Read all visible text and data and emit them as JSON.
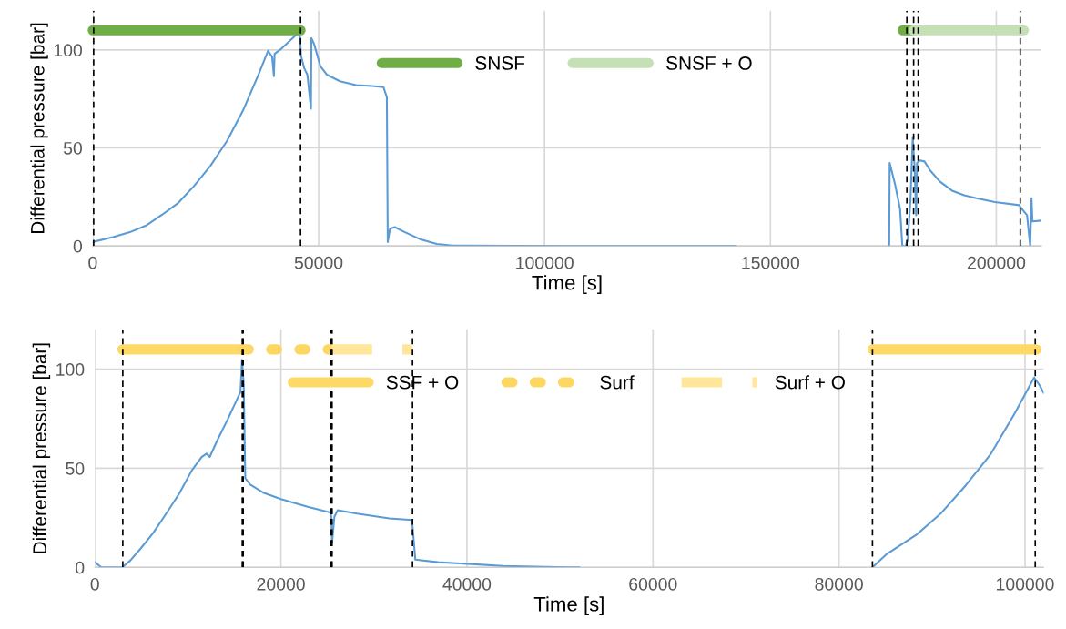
{
  "chart_data": [
    {
      "type": "line",
      "xlabel": "Time [s]",
      "ylabel": "Differential pressure [bar]",
      "xlim": [
        0,
        210000
      ],
      "ylim": [
        0,
        120
      ],
      "xticks": [
        0,
        50000,
        100000,
        150000,
        200000
      ],
      "yticks": [
        0,
        50,
        100
      ],
      "grid": true,
      "legend": "top",
      "marker": "none",
      "series": [
        {
          "name": "SNSF",
          "color": "#70ad47",
          "line_style": "solid",
          "x": [
            0,
            46000,
            112000,
            179300,
            181700
          ],
          "values": [
            110,
            110,
            null,
            110,
            110
          ]
        },
        {
          "name": "SNSF + O",
          "color": "#c5e0b4",
          "line_style": "solid",
          "x": [
            181700,
            206100
          ],
          "values": [
            110,
            110
          ]
        },
        {
          "color": "#5b9bd5",
          "line_style": "solid",
          "x": [
            0,
            0,
            4650,
            8200,
            11800,
            15400,
            18950,
            22500,
            26100,
            29700,
            33250,
            36800,
            38800,
            39700,
            40100,
            40250,
            41800,
            44700,
            45800,
            46100,
            46800,
            47500,
            48300,
            48400,
            49000,
            50400,
            51800,
            54700,
            58300,
            61850,
            64350,
            65100,
            65300,
            65800,
            66850,
            69000,
            72600,
            76150,
            79700,
            104700,
            142400,
            160000,
            176300,
            176400,
            177600,
            178700,
            179200,
            179900,
            180400,
            181000,
            181500,
            181900,
            182250,
            182450,
            183100,
            184100,
            185400,
            187500,
            190200,
            192900,
            195600,
            199700,
            205100,
            205400,
            206800,
            207500,
            207800,
            208000,
            210000
          ],
          "values": [
            0.5,
            2,
            4.6,
            7,
            10.4,
            16,
            22,
            30.8,
            41,
            53.5,
            69,
            88,
            99.5,
            96.5,
            86.6,
            98,
            100.7,
            107,
            109,
            97,
            90.7,
            87.4,
            70,
            106,
            103,
            91.6,
            87.4,
            84,
            82,
            81.6,
            81,
            75.8,
            2,
            8.8,
            9.6,
            7.1,
            3.3,
            1,
            0.2,
            0,
            0,
            null,
            0,
            42.3,
            31.3,
            18.8,
            0,
            0,
            3,
            23.5,
            55.6,
            40.8,
            15.7,
            42.3,
            43.6,
            43.1,
            38.4,
            32.9,
            28.2,
            25.9,
            24.3,
            22.4,
            20.8,
            19.6,
            15.7,
            0,
            24.3,
            12.5,
            12.9
          ]
        }
      ],
      "ref_lines": [
        {
          "axis": "x",
          "value": 200,
          "color": "#000000",
          "line_style": "dashed"
        },
        {
          "axis": "x",
          "value": 46000,
          "color": "#000000",
          "line_style": "dashed"
        },
        {
          "axis": "x",
          "value": 180200,
          "color": "#000000",
          "line_style": "dashed"
        },
        {
          "axis": "x",
          "value": 181700,
          "color": "#000000",
          "line_style": "dashed"
        },
        {
          "axis": "x",
          "value": 182700,
          "color": "#000000",
          "line_style": "dashed"
        },
        {
          "axis": "x",
          "value": 205300,
          "color": "#000000",
          "line_style": "dashed"
        }
      ]
    },
    {
      "type": "line",
      "xlabel": "Time [s]",
      "ylabel": "Differential pressure [bar]",
      "xlim": [
        0,
        102000
      ],
      "ylim": [
        0,
        120
      ],
      "xticks": [
        0,
        20000,
        40000,
        60000,
        80000,
        100000
      ],
      "yticks": [
        0,
        50,
        100
      ],
      "grid": true,
      "legend": "top",
      "marker": "none",
      "series": [
        {
          "name": "SSF + O",
          "color": "#ffd966",
          "line_style": "solid",
          "x": [
            2950,
            15900,
            50000,
            83600,
            101250
          ],
          "values": [
            110,
            110,
            null,
            110,
            110
          ]
        },
        {
          "name": "Surf",
          "color": "#fdd762",
          "line_style": "dotted",
          "x": [
            15900,
            25450
          ],
          "values": [
            110,
            110
          ]
        },
        {
          "name": "Surf + O",
          "color": "#ffe699",
          "line_style": "dashed",
          "x": [
            25450,
            34100
          ],
          "values": [
            110,
            110
          ]
        },
        {
          "color": "#5b9bd5",
          "line_style": "solid",
          "x": [
            0,
            700,
            2950,
            3800,
            4870,
            6260,
            7650,
            9040,
            10430,
            11480,
            12000,
            12350,
            13220,
            14260,
            15480,
            15650,
            15820,
            16000,
            16170,
            16700,
            18100,
            20000,
            22960,
            25400,
            25500,
            25750,
            26100,
            28180,
            31650,
            34100,
            34450,
            36900,
            40000,
            43830,
            50800,
            52100,
            67000,
            83600,
            85070,
            88370,
            91010,
            93650,
            96290,
            98930,
            100980,
            101570,
            102000
          ],
          "values": [
            2.6,
            0,
            0,
            3.4,
            9.2,
            17.3,
            27,
            37,
            49,
            55.7,
            57.4,
            55.7,
            64.7,
            74.5,
            86.8,
            88.4,
            104.7,
            92.5,
            45,
            41.8,
            37.7,
            34.5,
            30.4,
            27.6,
            12.4,
            25.5,
            28.8,
            27.1,
            24.7,
            23.9,
            3.9,
            2.6,
            1.8,
            0.7,
            0,
            0,
            null,
            0,
            6.5,
            16.6,
            27.5,
            41.5,
            57,
            78,
            95.8,
            91.9,
            88
          ]
        }
      ],
      "ref_lines": [
        {
          "axis": "x",
          "value": 3000,
          "color": "#000000",
          "line_style": "dashed"
        },
        {
          "axis": "x",
          "value": 15850,
          "color": "#000000",
          "line_style": "dashed"
        },
        {
          "axis": "x",
          "value": 15950,
          "color": "#000000",
          "line_style": "dashed"
        },
        {
          "axis": "x",
          "value": 25400,
          "color": "#000000",
          "line_style": "dashed"
        },
        {
          "axis": "x",
          "value": 25500,
          "color": "#000000",
          "line_style": "dashed"
        },
        {
          "axis": "x",
          "value": 34150,
          "color": "#000000",
          "line_style": "dashed"
        },
        {
          "axis": "x",
          "value": 83600,
          "color": "#000000",
          "line_style": "dashed"
        },
        {
          "axis": "x",
          "value": 101100,
          "color": "#000000",
          "line_style": "dashed"
        }
      ]
    }
  ]
}
